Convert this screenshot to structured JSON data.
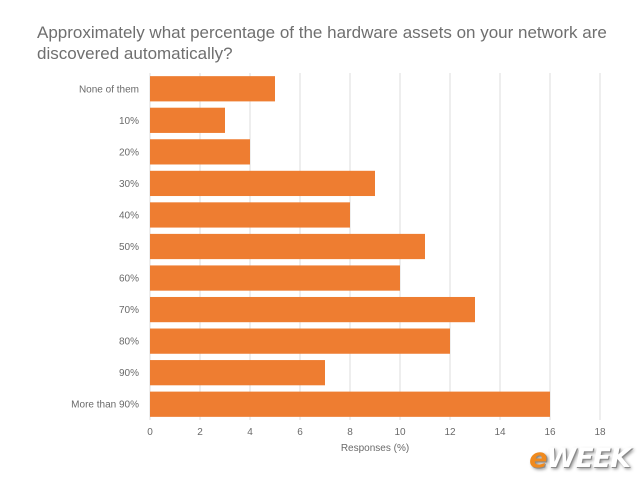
{
  "chart_data": {
    "type": "bar",
    "orientation": "horizontal",
    "title": "Approximately what percentage of the hardware assets on your network are discovered automatically?",
    "categories": [
      "None of them",
      "10%",
      "20%",
      "30%",
      "40%",
      "50%",
      "60%",
      "70%",
      "80%",
      "90%",
      "More than 90%"
    ],
    "values": [
      5,
      3,
      4,
      9,
      8,
      11,
      10,
      13,
      12,
      7,
      16
    ],
    "xlabel": "Responses (%)",
    "ylabel": "",
    "xlim": [
      0,
      18
    ],
    "xticks": [
      "0",
      "2",
      "4",
      "6",
      "8",
      "10",
      "12",
      "14",
      "16",
      "18"
    ],
    "grid": true,
    "bar_color": "#ee7d31"
  },
  "brand": {
    "prefix": "e",
    "name": "WEEK"
  }
}
